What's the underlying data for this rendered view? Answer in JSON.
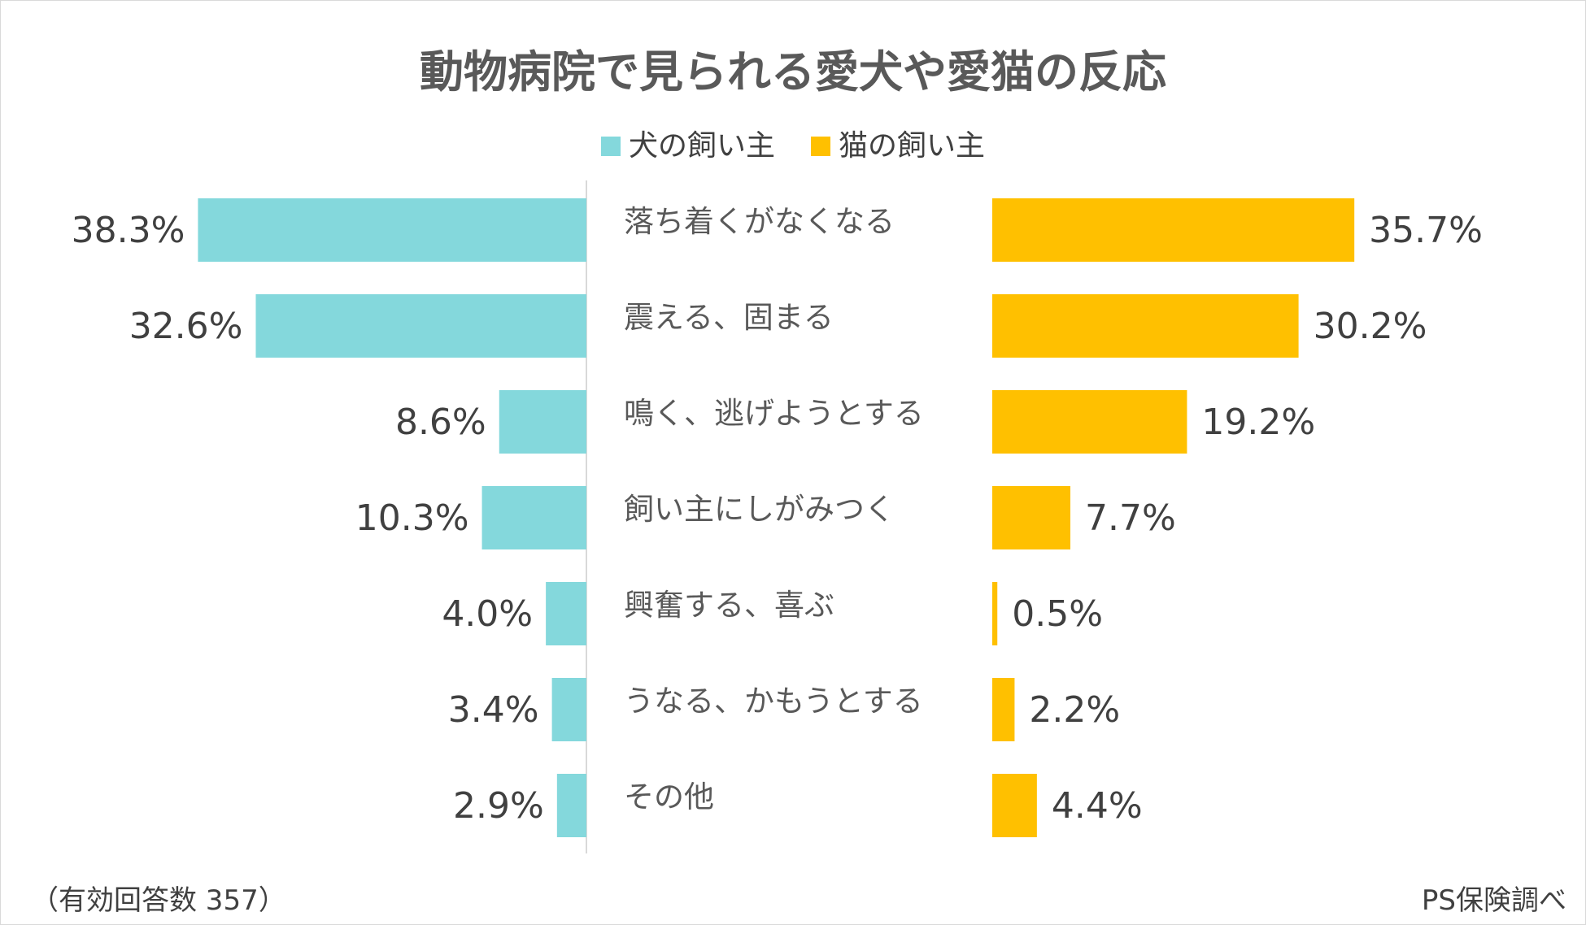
{
  "chart_data": {
    "type": "bar",
    "orientation": "horizontal-butterfly",
    "title": "動物病院で見られる愛犬や愛猫の反応",
    "categories": [
      "落ち着くがなくなる",
      "震える、固まる",
      "鳴く、逃げようとする",
      "飼い主にしがみつく",
      "興奮する、喜ぶ",
      "うなる、かもうとする",
      "その他"
    ],
    "series": [
      {
        "name": "犬の飼い主",
        "color": "#84D8DC",
        "values": [
          38.3,
          32.6,
          8.6,
          10.3,
          4.0,
          3.4,
          2.9
        ],
        "labels": [
          "38.3%",
          "32.6%",
          "8.6%",
          "10.3%",
          "4.0%",
          "3.4%",
          "2.9%"
        ]
      },
      {
        "name": "猫の飼い主",
        "color": "#FFC000",
        "values": [
          35.7,
          30.2,
          19.2,
          7.7,
          0.5,
          2.2,
          4.4
        ],
        "labels": [
          "35.7%",
          "30.2%",
          "19.2%",
          "7.7%",
          "0.5%",
          "2.2%",
          "4.4%"
        ]
      }
    ],
    "unit": "%",
    "legend": "top-center",
    "grid": false
  },
  "footer": {
    "note": "（有効回答数 357）",
    "source": "PS保険調べ"
  }
}
